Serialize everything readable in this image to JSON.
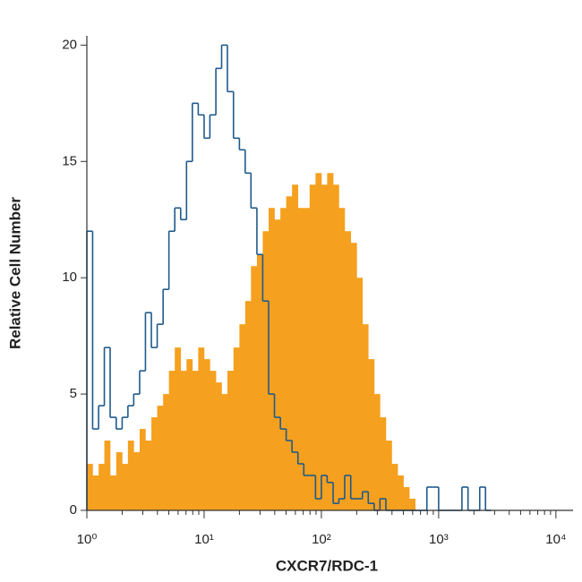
{
  "chart_data": {
    "type": "histogram",
    "x_label": "CXCR7/RDC-1",
    "y_label": "Relative Cell Number",
    "log_x": true,
    "x": [
      1,
      1.12,
      1.26,
      1.41,
      1.58,
      1.78,
      2,
      2.24,
      2.51,
      2.82,
      3.16,
      3.55,
      3.98,
      4.47,
      5.01,
      5.62,
      6.31,
      7.08,
      7.94,
      8.91,
      10,
      11.2,
      12.6,
      14.1,
      15.8,
      17.8,
      20,
      22.4,
      25.1,
      28.2,
      31.6,
      35.5,
      39.8,
      44.7,
      50.1,
      56.2,
      63.1,
      70.8,
      79.4,
      89.1,
      100,
      112,
      126,
      141,
      158,
      178,
      200,
      224,
      251,
      282,
      316,
      355,
      398,
      447,
      501,
      562,
      631,
      708,
      794,
      891,
      1000,
      1120,
      1260,
      1410,
      1580,
      1780,
      2000,
      2240,
      2510
    ],
    "series": [
      {
        "color": "#f5a01e",
        "style": "filled",
        "values": [
          2,
          1.5,
          2,
          3,
          1.5,
          2.5,
          2,
          3,
          2.5,
          3.5,
          3,
          4,
          4.5,
          5,
          6,
          7,
          6,
          6.5,
          6,
          7,
          6.5,
          6,
          5.5,
          5,
          6,
          7,
          8,
          9,
          10.5,
          11,
          12,
          13,
          12.5,
          13,
          13.5,
          14,
          13,
          13,
          14,
          14.5,
          14,
          14.5,
          14,
          13,
          12,
          11.5,
          10,
          8,
          6.5,
          5,
          4,
          3,
          2,
          1.5,
          1,
          0.5,
          0,
          0,
          0,
          0,
          0,
          0,
          0,
          0,
          0,
          0,
          0,
          0,
          0
        ]
      },
      {
        "color": "#1f5a8c",
        "style": "outline",
        "values": [
          12,
          3.5,
          4.5,
          7,
          4,
          3.5,
          4,
          4.5,
          5,
          6,
          8.5,
          7,
          8,
          9.5,
          12,
          13,
          12.5,
          15,
          17.5,
          17,
          16,
          17,
          19,
          20,
          18,
          16,
          15.5,
          14.5,
          13,
          11,
          9,
          5,
          4,
          3.5,
          3,
          2.5,
          2,
          1.5,
          1.5,
          0.5,
          1.5,
          1.2,
          0.3,
          0.5,
          1.5,
          0.5,
          0.5,
          0.8,
          0.3,
          0,
          0.5,
          0,
          0,
          0,
          0,
          0,
          0,
          0,
          1,
          1,
          0,
          0,
          0,
          0,
          1,
          0,
          0,
          1,
          0
        ]
      }
    ],
    "xlim": [
      1,
      14000
    ],
    "xticks": [
      {
        "value": 1,
        "label": "10⁰"
      },
      {
        "value": 10,
        "label": "10¹"
      },
      {
        "value": 100,
        "label": "10²"
      },
      {
        "value": 1000,
        "label": "10³"
      },
      {
        "value": 10000,
        "label": "10⁴"
      }
    ],
    "ylim": [
      0,
      20.4
    ],
    "yticks": [
      0,
      5,
      10,
      15,
      20
    ]
  }
}
